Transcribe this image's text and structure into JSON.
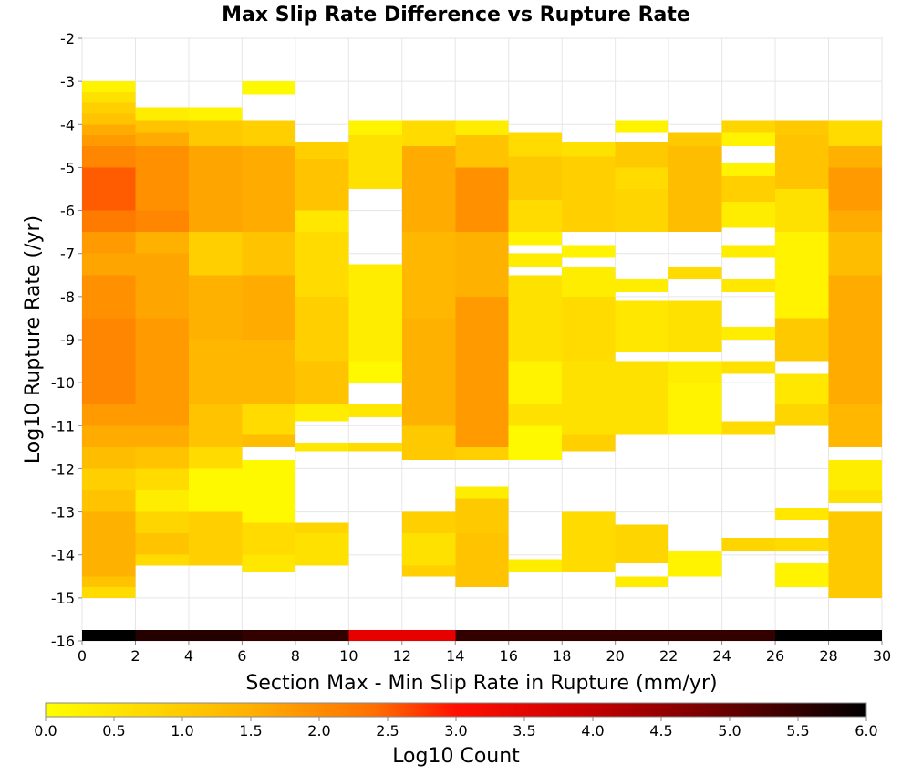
{
  "chart_data": {
    "type": "heatmap",
    "title": "Max Slip Rate Difference vs Rupture Rate",
    "xlabel": "Section Max - Min Slip Rate in Rupture (mm/yr)",
    "ylabel": "Log10 Rupture Rate (/yr)",
    "xlim": [
      0,
      30
    ],
    "ylim": [
      -16,
      -2
    ],
    "x_ticks": [
      "0",
      "2",
      "4",
      "6",
      "8",
      "10",
      "12",
      "14",
      "16",
      "18",
      "20",
      "22",
      "24",
      "26",
      "28",
      "30"
    ],
    "y_ticks": [
      "-2",
      "-3",
      "-4",
      "-5",
      "-6",
      "-7",
      "-8",
      "-9",
      "-10",
      "-11",
      "-12",
      "-13",
      "-14",
      "-15",
      "-16"
    ],
    "grid": true,
    "bin_width_x": 2,
    "bin_height_y": 0.25,
    "colorbar": {
      "label": "Log10 Count",
      "range": [
        0,
        6
      ],
      "ticks": [
        "0.0",
        "0.5",
        "1.0",
        "1.5",
        "2.0",
        "2.5",
        "3.0",
        "3.5",
        "4.0",
        "4.5",
        "5.0",
        "5.5",
        "6.0"
      ],
      "colors": [
        "#ffff00",
        "#ffa500",
        "#ff0000",
        "#000000"
      ],
      "placement": "bottom"
    },
    "columns": [
      {
        "x": 0,
        "segments": [
          {
            "y_top": -3.0,
            "y_bottom": -3.25,
            "v": 0.2
          },
          {
            "y_top": -3.25,
            "y_bottom": -3.5,
            "v": 0.5
          },
          {
            "y_top": -3.5,
            "y_bottom": -3.75,
            "v": 0.8
          },
          {
            "y_top": -3.75,
            "y_bottom": -4.0,
            "v": 1.0
          },
          {
            "y_top": -4.0,
            "y_bottom": -4.25,
            "v": 1.4
          },
          {
            "y_top": -4.25,
            "y_bottom": -4.5,
            "v": 1.6
          },
          {
            "y_top": -4.5,
            "y_bottom": -5.0,
            "v": 1.8
          },
          {
            "y_top": -5.0,
            "y_bottom": -6.0,
            "v": 2.2
          },
          {
            "y_top": -6.0,
            "y_bottom": -6.5,
            "v": 1.9
          },
          {
            "y_top": -6.5,
            "y_bottom": -7.0,
            "v": 1.6
          },
          {
            "y_top": -7.0,
            "y_bottom": -7.5,
            "v": 1.5
          },
          {
            "y_top": -7.5,
            "y_bottom": -8.5,
            "v": 1.7
          },
          {
            "y_top": -8.5,
            "y_bottom": -10.5,
            "v": 1.8
          },
          {
            "y_top": -10.5,
            "y_bottom": -11.0,
            "v": 1.6
          },
          {
            "y_top": -11.0,
            "y_bottom": -11.5,
            "v": 1.4
          },
          {
            "y_top": -11.5,
            "y_bottom": -12.0,
            "v": 1.1
          },
          {
            "y_top": -12.0,
            "y_bottom": -12.5,
            "v": 0.8
          },
          {
            "y_top": -12.5,
            "y_bottom": -13.0,
            "v": 1.0
          },
          {
            "y_top": -13.0,
            "y_bottom": -14.5,
            "v": 1.3
          },
          {
            "y_top": -14.5,
            "y_bottom": -14.75,
            "v": 1.0
          },
          {
            "y_top": -14.75,
            "y_bottom": -15.0,
            "v": 0.6
          },
          {
            "y_top": -15.75,
            "y_bottom": -16.0,
            "v": 6.0
          }
        ]
      },
      {
        "x": 2,
        "segments": [
          {
            "y_top": -3.6,
            "y_bottom": -3.9,
            "v": 0.3
          },
          {
            "y_top": -3.9,
            "y_bottom": -4.2,
            "v": 1.0
          },
          {
            "y_top": -4.2,
            "y_bottom": -4.5,
            "v": 1.4
          },
          {
            "y_top": -4.5,
            "y_bottom": -6.0,
            "v": 1.7
          },
          {
            "y_top": -6.0,
            "y_bottom": -6.5,
            "v": 1.8
          },
          {
            "y_top": -6.5,
            "y_bottom": -7.0,
            "v": 1.3
          },
          {
            "y_top": -7.0,
            "y_bottom": -8.5,
            "v": 1.5
          },
          {
            "y_top": -8.5,
            "y_bottom": -11.0,
            "v": 1.6
          },
          {
            "y_top": -11.0,
            "y_bottom": -11.5,
            "v": 1.4
          },
          {
            "y_top": -11.5,
            "y_bottom": -12.0,
            "v": 1.0
          },
          {
            "y_top": -12.0,
            "y_bottom": -12.5,
            "v": 0.6
          },
          {
            "y_top": -12.5,
            "y_bottom": -13.0,
            "v": 0.3
          },
          {
            "y_top": -13.0,
            "y_bottom": -13.5,
            "v": 0.7
          },
          {
            "y_top": -13.5,
            "y_bottom": -14.0,
            "v": 1.0
          },
          {
            "y_top": -14.0,
            "y_bottom": -14.25,
            "v": 0.6
          },
          {
            "y_top": -15.75,
            "y_bottom": -16.0,
            "v": 5.5
          }
        ]
      },
      {
        "x": 4,
        "segments": [
          {
            "y_top": -3.6,
            "y_bottom": -3.9,
            "v": 0.2
          },
          {
            "y_top": -3.9,
            "y_bottom": -4.5,
            "v": 0.9
          },
          {
            "y_top": -4.5,
            "y_bottom": -6.5,
            "v": 1.5
          },
          {
            "y_top": -6.5,
            "y_bottom": -7.5,
            "v": 0.8
          },
          {
            "y_top": -7.5,
            "y_bottom": -9.0,
            "v": 1.3
          },
          {
            "y_top": -9.0,
            "y_bottom": -10.5,
            "v": 1.2
          },
          {
            "y_top": -10.5,
            "y_bottom": -11.5,
            "v": 1.0
          },
          {
            "y_top": -11.5,
            "y_bottom": -12.0,
            "v": 0.6
          },
          {
            "y_top": -12.0,
            "y_bottom": -13.0,
            "v": 0.1
          },
          {
            "y_top": -13.0,
            "y_bottom": -14.25,
            "v": 0.8
          },
          {
            "y_top": -15.75,
            "y_bottom": -16.0,
            "v": 5.5
          }
        ]
      },
      {
        "x": 6,
        "segments": [
          {
            "y_top": -3.0,
            "y_bottom": -3.3,
            "v": 0.1
          },
          {
            "y_top": -3.9,
            "y_bottom": -4.5,
            "v": 0.8
          },
          {
            "y_top": -4.5,
            "y_bottom": -6.5,
            "v": 1.4
          },
          {
            "y_top": -6.5,
            "y_bottom": -7.5,
            "v": 1.0
          },
          {
            "y_top": -7.5,
            "y_bottom": -9.0,
            "v": 1.4
          },
          {
            "y_top": -9.0,
            "y_bottom": -10.5,
            "v": 1.2
          },
          {
            "y_top": -10.5,
            "y_bottom": -11.2,
            "v": 0.6
          },
          {
            "y_top": -11.2,
            "y_bottom": -11.5,
            "v": 1.1
          },
          {
            "y_top": -11.8,
            "y_bottom": -13.25,
            "v": 0.1
          },
          {
            "y_top": -13.25,
            "y_bottom": -14.0,
            "v": 0.6
          },
          {
            "y_top": -14.0,
            "y_bottom": -14.4,
            "v": 0.4
          },
          {
            "y_top": -15.75,
            "y_bottom": -16.0,
            "v": 5.3
          }
        ]
      },
      {
        "x": 8,
        "segments": [
          {
            "y_top": -4.4,
            "y_bottom": -4.8,
            "v": 0.8
          },
          {
            "y_top": -4.8,
            "y_bottom": -6.0,
            "v": 1.0
          },
          {
            "y_top": -6.0,
            "y_bottom": -6.5,
            "v": 0.4
          },
          {
            "y_top": -6.5,
            "y_bottom": -8.0,
            "v": 0.6
          },
          {
            "y_top": -8.0,
            "y_bottom": -9.5,
            "v": 0.8
          },
          {
            "y_top": -9.5,
            "y_bottom": -10.5,
            "v": 1.0
          },
          {
            "y_top": -10.5,
            "y_bottom": -10.9,
            "v": 0.3
          },
          {
            "y_top": -11.4,
            "y_bottom": -11.6,
            "v": 0.4
          },
          {
            "y_top": -13.25,
            "y_bottom": -13.5,
            "v": 0.7
          },
          {
            "y_top": -13.5,
            "y_bottom": -14.25,
            "v": 0.5
          },
          {
            "y_top": -15.75,
            "y_bottom": -16.0,
            "v": 5.3
          }
        ]
      },
      {
        "x": 10,
        "segments": [
          {
            "y_top": -3.9,
            "y_bottom": -4.25,
            "v": 0.2
          },
          {
            "y_top": -4.25,
            "y_bottom": -5.5,
            "v": 0.5
          },
          {
            "y_top": -7.25,
            "y_bottom": -9.5,
            "v": 0.3
          },
          {
            "y_top": -9.5,
            "y_bottom": -10.0,
            "v": 0.1
          },
          {
            "y_top": -10.5,
            "y_bottom": -10.8,
            "v": 0.4
          },
          {
            "y_top": -11.4,
            "y_bottom": -11.6,
            "v": 0.6
          },
          {
            "y_top": -15.75,
            "y_bottom": -16.0,
            "v": 3.0
          }
        ]
      },
      {
        "x": 12,
        "segments": [
          {
            "y_top": -3.9,
            "y_bottom": -4.5,
            "v": 0.6
          },
          {
            "y_top": -4.5,
            "y_bottom": -6.5,
            "v": 1.4
          },
          {
            "y_top": -6.5,
            "y_bottom": -8.5,
            "v": 1.2
          },
          {
            "y_top": -8.5,
            "y_bottom": -11.0,
            "v": 1.3
          },
          {
            "y_top": -11.0,
            "y_bottom": -11.8,
            "v": 0.9
          },
          {
            "y_top": -13.0,
            "y_bottom": -13.5,
            "v": 0.8
          },
          {
            "y_top": -13.5,
            "y_bottom": -14.25,
            "v": 0.5
          },
          {
            "y_top": -14.25,
            "y_bottom": -14.5,
            "v": 0.8
          },
          {
            "y_top": -15.75,
            "y_bottom": -16.0,
            "v": 3.0
          }
        ]
      },
      {
        "x": 14,
        "segments": [
          {
            "y_top": -3.9,
            "y_bottom": -4.25,
            "v": 0.3
          },
          {
            "y_top": -4.25,
            "y_bottom": -5.0,
            "v": 1.0
          },
          {
            "y_top": -5.0,
            "y_bottom": -6.5,
            "v": 1.7
          },
          {
            "y_top": -6.5,
            "y_bottom": -8.0,
            "v": 1.3
          },
          {
            "y_top": -8.0,
            "y_bottom": -11.5,
            "v": 1.6
          },
          {
            "y_top": -11.5,
            "y_bottom": -11.8,
            "v": 0.8
          },
          {
            "y_top": -12.4,
            "y_bottom": -12.7,
            "v": 0.3
          },
          {
            "y_top": -12.7,
            "y_bottom": -13.5,
            "v": 0.9
          },
          {
            "y_top": -13.5,
            "y_bottom": -14.75,
            "v": 1.0
          },
          {
            "y_top": -15.75,
            "y_bottom": -16.0,
            "v": 5.3
          }
        ]
      },
      {
        "x": 16,
        "segments": [
          {
            "y_top": -4.2,
            "y_bottom": -4.75,
            "v": 0.6
          },
          {
            "y_top": -4.75,
            "y_bottom": -5.75,
            "v": 0.9
          },
          {
            "y_top": -5.75,
            "y_bottom": -6.5,
            "v": 0.6
          },
          {
            "y_top": -6.5,
            "y_bottom": -6.8,
            "v": 0.2
          },
          {
            "y_top": -7.0,
            "y_bottom": -7.3,
            "v": 0.3
          },
          {
            "y_top": -7.5,
            "y_bottom": -9.5,
            "v": 0.5
          },
          {
            "y_top": -9.5,
            "y_bottom": -10.5,
            "v": 0.2
          },
          {
            "y_top": -10.5,
            "y_bottom": -11.0,
            "v": 0.5
          },
          {
            "y_top": -11.0,
            "y_bottom": -11.8,
            "v": 0.1
          },
          {
            "y_top": -14.1,
            "y_bottom": -14.4,
            "v": 0.3
          },
          {
            "y_top": -15.75,
            "y_bottom": -16.0,
            "v": 5.3
          }
        ]
      },
      {
        "x": 18,
        "segments": [
          {
            "y_top": -4.4,
            "y_bottom": -4.75,
            "v": 0.5
          },
          {
            "y_top": -4.75,
            "y_bottom": -6.5,
            "v": 0.8
          },
          {
            "y_top": -6.8,
            "y_bottom": -7.1,
            "v": 0.2
          },
          {
            "y_top": -7.3,
            "y_bottom": -8.0,
            "v": 0.3
          },
          {
            "y_top": -8.0,
            "y_bottom": -9.5,
            "v": 0.6
          },
          {
            "y_top": -9.5,
            "y_bottom": -11.2,
            "v": 0.5
          },
          {
            "y_top": -11.2,
            "y_bottom": -11.6,
            "v": 0.8
          },
          {
            "y_top": -13.0,
            "y_bottom": -14.4,
            "v": 0.6
          },
          {
            "y_top": -15.75,
            "y_bottom": -16.0,
            "v": 5.3
          }
        ]
      },
      {
        "x": 20,
        "segments": [
          {
            "y_top": -3.9,
            "y_bottom": -4.2,
            "v": 0.2
          },
          {
            "y_top": -4.4,
            "y_bottom": -5.0,
            "v": 0.9
          },
          {
            "y_top": -5.0,
            "y_bottom": -5.5,
            "v": 0.6
          },
          {
            "y_top": -5.5,
            "y_bottom": -6.5,
            "v": 0.7
          },
          {
            "y_top": -7.6,
            "y_bottom": -7.9,
            "v": 0.3
          },
          {
            "y_top": -8.1,
            "y_bottom": -9.3,
            "v": 0.4
          },
          {
            "y_top": -9.5,
            "y_bottom": -11.2,
            "v": 0.5
          },
          {
            "y_top": -13.3,
            "y_bottom": -14.2,
            "v": 0.7
          },
          {
            "y_top": -14.5,
            "y_bottom": -14.75,
            "v": 0.3
          },
          {
            "y_top": -15.75,
            "y_bottom": -16.0,
            "v": 5.3
          }
        ]
      },
      {
        "x": 22,
        "segments": [
          {
            "y_top": -4.2,
            "y_bottom": -4.5,
            "v": 0.9
          },
          {
            "y_top": -4.5,
            "y_bottom": -6.5,
            "v": 1.1
          },
          {
            "y_top": -7.3,
            "y_bottom": -7.6,
            "v": 0.6
          },
          {
            "y_top": -8.1,
            "y_bottom": -9.3,
            "v": 0.5
          },
          {
            "y_top": -9.5,
            "y_bottom": -10.0,
            "v": 0.3
          },
          {
            "y_top": -10.0,
            "y_bottom": -11.2,
            "v": 0.2
          },
          {
            "y_top": -13.9,
            "y_bottom": -14.5,
            "v": 0.2
          },
          {
            "y_top": -15.75,
            "y_bottom": -16.0,
            "v": 5.3
          }
        ]
      },
      {
        "x": 24,
        "segments": [
          {
            "y_top": -3.9,
            "y_bottom": -4.2,
            "v": 0.7
          },
          {
            "y_top": -4.2,
            "y_bottom": -4.5,
            "v": 0.2
          },
          {
            "y_top": -4.9,
            "y_bottom": -5.2,
            "v": 0.2
          },
          {
            "y_top": -5.2,
            "y_bottom": -5.8,
            "v": 0.8
          },
          {
            "y_top": -5.8,
            "y_bottom": -6.4,
            "v": 0.3
          },
          {
            "y_top": -6.8,
            "y_bottom": -7.1,
            "v": 0.3
          },
          {
            "y_top": -7.6,
            "y_bottom": -7.9,
            "v": 0.4
          },
          {
            "y_top": -8.7,
            "y_bottom": -9.0,
            "v": 0.3
          },
          {
            "y_top": -9.5,
            "y_bottom": -9.8,
            "v": 0.5
          },
          {
            "y_top": -10.9,
            "y_bottom": -11.2,
            "v": 0.6
          },
          {
            "y_top": -13.6,
            "y_bottom": -13.9,
            "v": 0.7
          },
          {
            "y_top": -15.75,
            "y_bottom": -16.0,
            "v": 5.3
          }
        ]
      },
      {
        "x": 26,
        "segments": [
          {
            "y_top": -3.9,
            "y_bottom": -4.25,
            "v": 0.9
          },
          {
            "y_top": -4.25,
            "y_bottom": -5.5,
            "v": 1.0
          },
          {
            "y_top": -5.5,
            "y_bottom": -6.5,
            "v": 0.5
          },
          {
            "y_top": -6.5,
            "y_bottom": -8.5,
            "v": 0.2
          },
          {
            "y_top": -8.5,
            "y_bottom": -9.5,
            "v": 0.9
          },
          {
            "y_top": -9.8,
            "y_bottom": -10.5,
            "v": 0.4
          },
          {
            "y_top": -10.5,
            "y_bottom": -11.0,
            "v": 0.7
          },
          {
            "y_top": -12.9,
            "y_bottom": -13.2,
            "v": 0.4
          },
          {
            "y_top": -13.6,
            "y_bottom": -13.9,
            "v": 0.6
          },
          {
            "y_top": -14.2,
            "y_bottom": -14.75,
            "v": 0.2
          },
          {
            "y_top": -15.75,
            "y_bottom": -16.0,
            "v": 6.0
          }
        ]
      },
      {
        "x": 28,
        "segments": [
          {
            "y_top": -3.9,
            "y_bottom": -4.5,
            "v": 0.6
          },
          {
            "y_top": -4.5,
            "y_bottom": -5.0,
            "v": 1.3
          },
          {
            "y_top": -5.0,
            "y_bottom": -6.0,
            "v": 1.6
          },
          {
            "y_top": -6.0,
            "y_bottom": -6.5,
            "v": 1.4
          },
          {
            "y_top": -6.5,
            "y_bottom": -7.5,
            "v": 1.1
          },
          {
            "y_top": -7.5,
            "y_bottom": -10.5,
            "v": 1.4
          },
          {
            "y_top": -10.5,
            "y_bottom": -11.5,
            "v": 1.2
          },
          {
            "y_top": -11.8,
            "y_bottom": -12.5,
            "v": 0.3
          },
          {
            "y_top": -12.5,
            "y_bottom": -12.8,
            "v": 0.5
          },
          {
            "y_top": -13.0,
            "y_bottom": -15.0,
            "v": 0.9
          },
          {
            "y_top": -15.75,
            "y_bottom": -16.0,
            "v": 6.0
          }
        ]
      }
    ]
  }
}
